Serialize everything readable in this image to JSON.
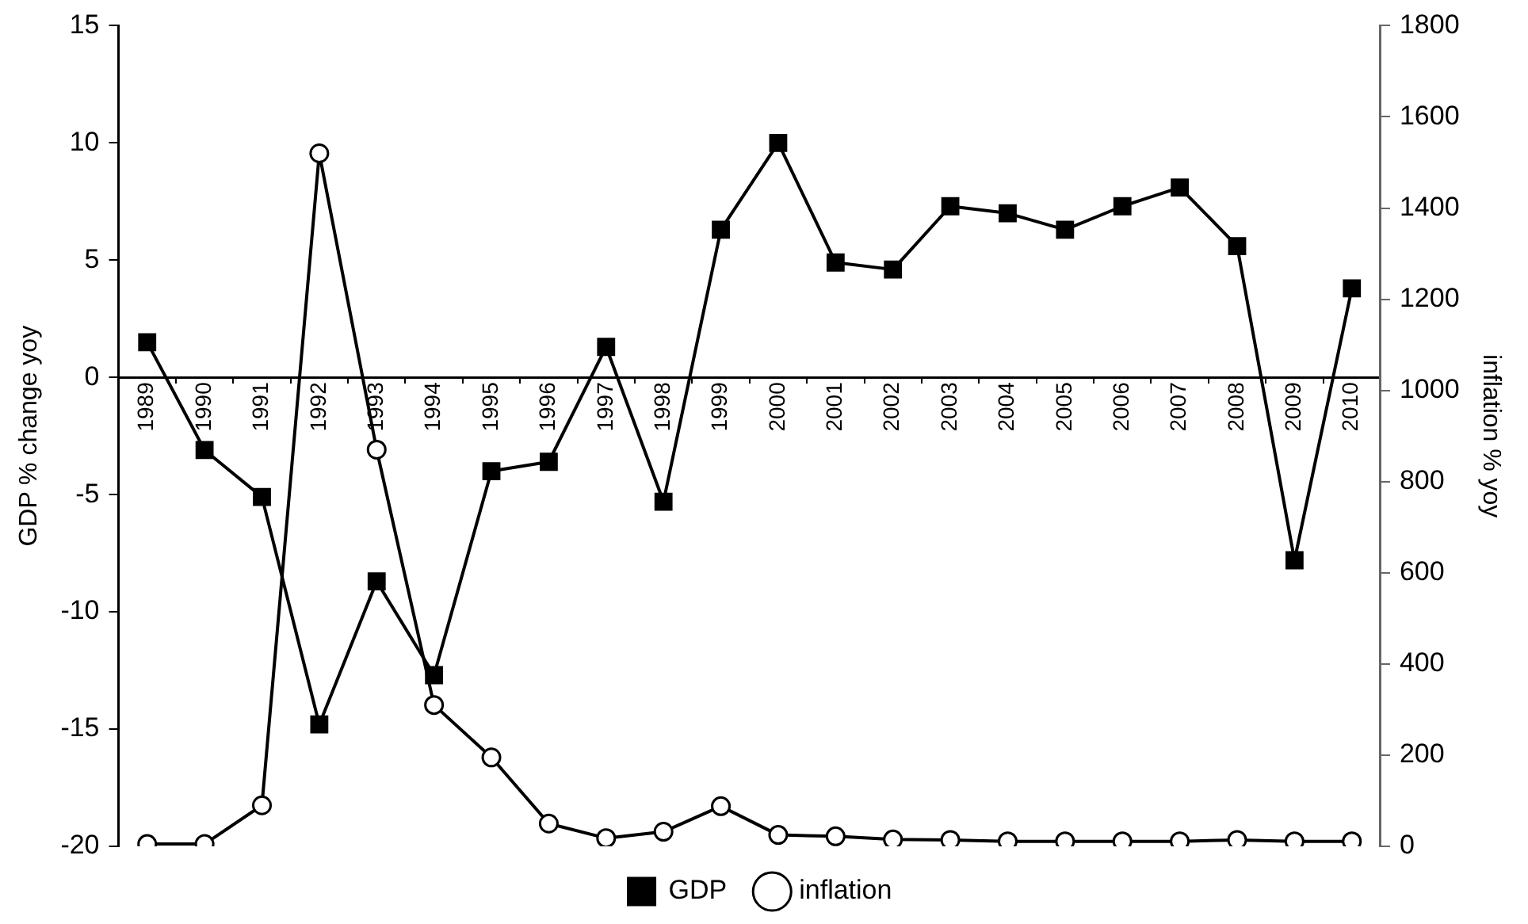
{
  "chart_data": {
    "type": "line",
    "ylabel": "GDP % change yoy",
    "y2label": "inflation % yoy",
    "categories": [
      "1989",
      "1990",
      "1991",
      "1992",
      "1993",
      "1994",
      "1995",
      "1996",
      "1997",
      "1998",
      "1999",
      "2000",
      "2001",
      "2002",
      "2003",
      "2004",
      "2005",
      "2006",
      "2007",
      "2008",
      "2009",
      "2010"
    ],
    "series": [
      {
        "name": "GDP",
        "color": "#000000",
        "marker": "square",
        "values": [
          1.5,
          -3.1,
          -5.1,
          -14.8,
          -8.7,
          -12.7,
          -4.0,
          -3.6,
          1.3,
          -5.3,
          6.3,
          10.0,
          4.9,
          4.6,
          7.3,
          7.0,
          6.3,
          7.3,
          8.1,
          5.6,
          -7.8,
          3.8
        ]
      },
      {
        "name": "inflation",
        "color": "#000000",
        "marker": "circle",
        "axis": "y2",
        "values": [
          5,
          5,
          90,
          1520,
          870,
          310,
          195,
          50,
          18,
          32,
          88,
          25,
          22,
          15,
          14,
          11,
          11,
          11,
          11,
          14,
          11,
          11
        ]
      }
    ],
    "ylim": [
      -20,
      15
    ],
    "yticks": [
      -20,
      -15,
      -10,
      -5,
      0,
      5,
      10,
      15
    ],
    "y2lim": [
      0,
      1800
    ],
    "y2ticks": [
      0,
      200,
      400,
      600,
      800,
      1000,
      1200,
      1400,
      1600,
      1800
    ],
    "grid": false,
    "legend": "bottom",
    "line_style": "solid"
  }
}
